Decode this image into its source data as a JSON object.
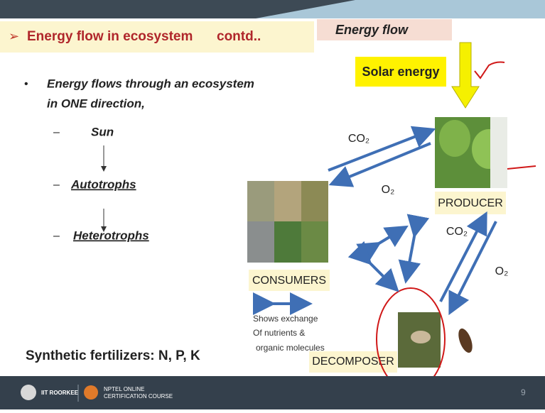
{
  "header": {
    "title": "Energy flow in ecosystem",
    "suffix": "contd..",
    "tag": "Energy flow"
  },
  "solar": "Solar energy",
  "bullet": {
    "lines": [
      "Energy flows through an ecosystem",
      "in ONE direction,"
    ]
  },
  "chain": [
    "Sun",
    "Autotrophs",
    "Heterotrophs"
  ],
  "fertilizers": "Synthetic fertilizers: N, P, K",
  "diagram": {
    "co2_top": "CO₂",
    "o2_top": "O₂",
    "producer": "PRODUCER",
    "co2_right": "CO₂",
    "o2_right": "O₂",
    "consumers": "CONSUMERS",
    "decomposer": "DECOMPOSER",
    "note": [
      "Shows exchange",
      "Of nutrients &",
      "organic molecules"
    ]
  },
  "footer": {
    "institute": "IIT ROORKEE",
    "course": [
      "NPTEL ONLINE",
      "CERTIFICATION COURSE"
    ],
    "page": 9
  }
}
